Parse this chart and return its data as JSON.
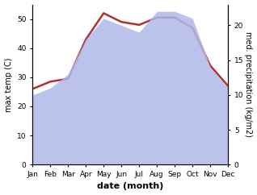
{
  "months": [
    "Jan",
    "Feb",
    "Mar",
    "Apr",
    "May",
    "Jun",
    "Jul",
    "Aug",
    "Sep",
    "Oct",
    "Nov",
    "Dec"
  ],
  "month_x": [
    1,
    2,
    3,
    4,
    5,
    6,
    7,
    8,
    9,
    10,
    11,
    12
  ],
  "temp": [
    26,
    28.5,
    29.5,
    43,
    52,
    49,
    48,
    50.5,
    50.5,
    47,
    34,
    27
  ],
  "precip": [
    10,
    11,
    13,
    18,
    21,
    20,
    19,
    22,
    22,
    21,
    14,
    11
  ],
  "temp_color": "#b03030",
  "precip_fill_color": "#b0b8e8",
  "ylabel_left": "max temp (C)",
  "ylabel_right": "med. precipitation (kg/m2)",
  "xlabel": "date (month)",
  "ylim_left": [
    0,
    55
  ],
  "ylim_right": [
    0,
    23
  ],
  "bg_color": "#ffffff",
  "temp_lw": 1.8,
  "label_fontsize": 7,
  "tick_fontsize": 6.5,
  "xlabel_fontsize": 8
}
